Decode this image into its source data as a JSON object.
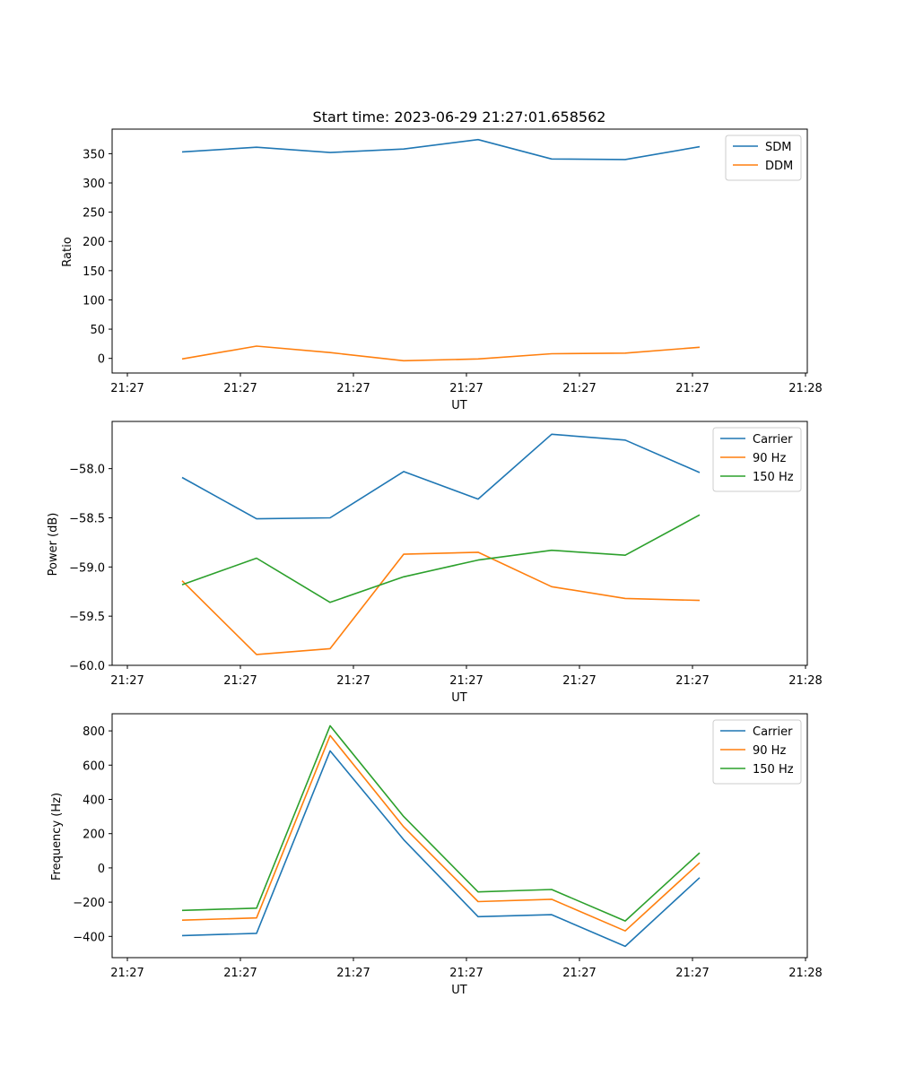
{
  "chart_data": [
    {
      "type": "line",
      "title": "Start time: 2023-06-29 21:27:01.658562",
      "xlabel": "UT",
      "ylabel": "Ratio",
      "x_tick_labels": [
        "21:27",
        "21:27",
        "21:27",
        "21:27",
        "21:27",
        "21:27",
        "21:28"
      ],
      "y_ticks": [
        0,
        50,
        100,
        150,
        200,
        250,
        300,
        350
      ],
      "ylim": [
        -25,
        392
      ],
      "legend_position": "top-right",
      "series": [
        {
          "name": "SDM",
          "color": "#1f77b4",
          "values": [
            353,
            361,
            352,
            358,
            374,
            341,
            340,
            362
          ]
        },
        {
          "name": "DDM",
          "color": "#ff7f0e",
          "values": [
            -1,
            21,
            10,
            -4,
            -1,
            8,
            9,
            19
          ]
        }
      ]
    },
    {
      "type": "line",
      "title": "",
      "xlabel": "UT",
      "ylabel": "Power (dB)",
      "x_tick_labels": [
        "21:27",
        "21:27",
        "21:27",
        "21:27",
        "21:27",
        "21:27",
        "21:28"
      ],
      "y_ticks": [
        -60.0,
        -59.5,
        -59.0,
        -58.5,
        -58.0
      ],
      "y_tick_labels": [
        "−60.0",
        "−59.5",
        "−59.0",
        "−58.5",
        "−58.0"
      ],
      "ylim": [
        -60.0,
        -57.52
      ],
      "legend_position": "top-right",
      "series": [
        {
          "name": "Carrier",
          "color": "#1f77b4",
          "values": [
            -58.09,
            -58.51,
            -58.5,
            -58.03,
            -58.31,
            -57.65,
            -57.71,
            -58.04
          ]
        },
        {
          "name": "90 Hz",
          "color": "#ff7f0e",
          "values": [
            -59.14,
            -59.89,
            -59.83,
            -58.87,
            -58.85,
            -59.2,
            -59.32,
            -59.34
          ]
        },
        {
          "name": "150 Hz",
          "color": "#2ca02c",
          "values": [
            -59.18,
            -58.91,
            -59.36,
            -59.1,
            -58.93,
            -58.83,
            -58.88,
            -58.47
          ]
        }
      ]
    },
    {
      "type": "line",
      "title": "",
      "xlabel": "UT",
      "ylabel": "Frequency (Hz)",
      "x_tick_labels": [
        "21:27",
        "21:27",
        "21:27",
        "21:27",
        "21:27",
        "21:27",
        "21:28"
      ],
      "y_ticks": [
        -400,
        -200,
        0,
        200,
        400,
        600,
        800
      ],
      "y_tick_labels": [
        "−400",
        "−200",
        "0",
        "200",
        "400",
        "600",
        "800"
      ],
      "ylim": [
        -524,
        900
      ],
      "legend_position": "top-right",
      "series": [
        {
          "name": "Carrier",
          "color": "#1f77b4",
          "values": [
            -395,
            -382,
            683,
            165,
            -285,
            -273,
            -458,
            -57
          ]
        },
        {
          "name": "90 Hz",
          "color": "#ff7f0e",
          "values": [
            -305,
            -292,
            773,
            240,
            -197,
            -183,
            -368,
            30
          ]
        },
        {
          "name": "150 Hz",
          "color": "#2ca02c",
          "values": [
            -248,
            -235,
            830,
            300,
            -140,
            -126,
            -310,
            88
          ]
        }
      ]
    }
  ]
}
